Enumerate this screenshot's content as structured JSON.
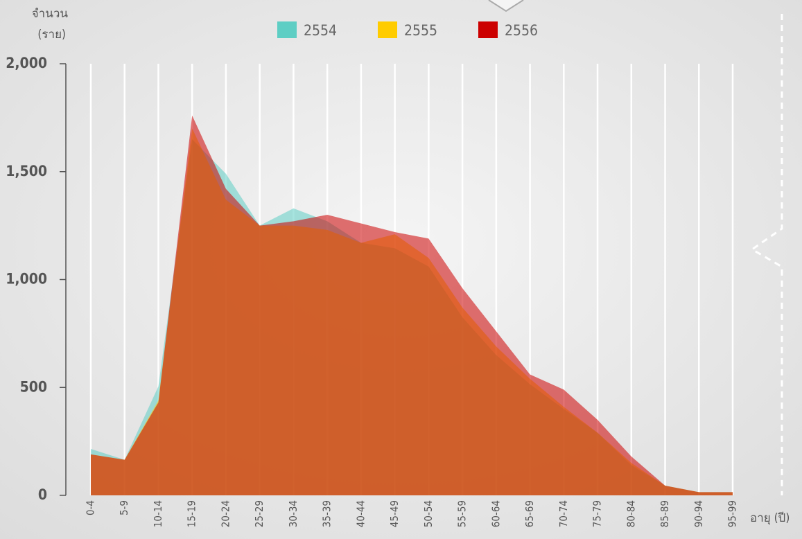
{
  "chart_data": {
    "type": "area",
    "y_label": [
      "จำนวน",
      "(ราย)"
    ],
    "x_label": "อายุ (ปี)",
    "categories": [
      "0-4",
      "5-9",
      "10-14",
      "15-19",
      "20-24",
      "25-29",
      "30-34",
      "35-39",
      "40-44",
      "45-49",
      "50-54",
      "55-59",
      "60-64",
      "65-69",
      "70-74",
      "75-79",
      "80-84",
      "85-89",
      "90-94",
      "95-99"
    ],
    "series": [
      {
        "name": "2554",
        "color": "#5ecec4",
        "values": [
          215,
          165,
          505,
          1650,
          1490,
          1250,
          1330,
          1270,
          1170,
          1145,
          1060,
          825,
          650,
          515,
          400,
          290,
          140,
          45,
          15,
          15
        ]
      },
      {
        "name": "2555",
        "color": "#ffcc00",
        "values": [
          190,
          165,
          440,
          1700,
          1370,
          1250,
          1250,
          1230,
          1170,
          1210,
          1100,
          870,
          690,
          540,
          410,
          290,
          150,
          45,
          15,
          15
        ]
      },
      {
        "name": "2556",
        "color": "#cc0000",
        "values": [
          190,
          165,
          430,
          1760,
          1420,
          1250,
          1270,
          1300,
          1260,
          1220,
          1190,
          960,
          760,
          560,
          490,
          350,
          180,
          45,
          15,
          15
        ]
      }
    ],
    "ylim": [
      0,
      2000
    ],
    "yticks": [
      0,
      500,
      {
        "value": 1000,
        "label": "1,000"
      },
      {
        "value": 1500,
        "label": "1,500"
      },
      {
        "value": 2000,
        "label": "2,000"
      }
    ],
    "grid": true
  }
}
